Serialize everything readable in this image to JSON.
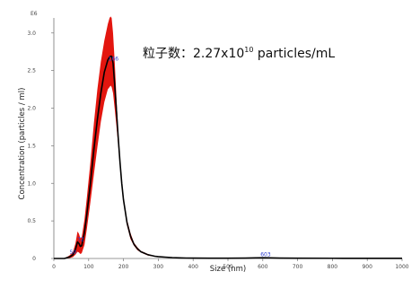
{
  "chart_data": {
    "type": "line",
    "xlabel": "Size (nm)",
    "ylabel": "Concentration (particles / ml)",
    "y_scale_label": "E6",
    "xlim": [
      0,
      1000
    ],
    "ylim": [
      0,
      3.2
    ],
    "x_ticks": [
      "0",
      "100",
      "200",
      "300",
      "400",
      "500",
      "600",
      "700",
      "800",
      "900",
      "1000"
    ],
    "y_ticks": [
      "0",
      "0.5",
      "1.0",
      "1.5",
      "2.0",
      "2.5",
      "3.0"
    ],
    "grid": false,
    "legend": "none",
    "annotation": {
      "prefix": "粒子数：2.27x10",
      "exponent": "10",
      "suffix": " particles/mL"
    },
    "peak_labels": [
      {
        "text": "50",
        "x": 50,
        "y": 0.05
      },
      {
        "text": "72",
        "x": 72,
        "y": 0.22
      },
      {
        "text": "166",
        "x": 166,
        "y": 2.62
      },
      {
        "text": "603",
        "x": 603,
        "y": 0.02
      }
    ],
    "series": [
      {
        "role": "mean",
        "color": "#000000",
        "x": [
          0,
          30,
          45,
          55,
          62,
          68,
          72,
          76,
          80,
          88,
          95,
          105,
          115,
          125,
          135,
          145,
          155,
          160,
          163,
          166,
          170,
          175,
          180,
          185,
          190,
          195,
          200,
          210,
          220,
          230,
          240,
          250,
          260,
          270,
          280,
          290,
          300,
          320,
          340,
          360,
          380,
          400,
          450,
          500,
          550,
          580,
          603,
          620,
          650,
          700,
          800,
          900,
          1000
        ],
        "y": [
          0,
          0,
          0.02,
          0.05,
          0.12,
          0.22,
          0.2,
          0.16,
          0.17,
          0.35,
          0.6,
          1.0,
          1.45,
          1.85,
          2.2,
          2.48,
          2.64,
          2.68,
          2.69,
          2.69,
          2.6,
          2.3,
          1.95,
          1.6,
          1.28,
          1.0,
          0.78,
          0.48,
          0.3,
          0.19,
          0.13,
          0.09,
          0.07,
          0.05,
          0.04,
          0.03,
          0.025,
          0.018,
          0.012,
          0.008,
          0.006,
          0.005,
          0.004,
          0.004,
          0.005,
          0.008,
          0.01,
          0.008,
          0.005,
          0.004,
          0.003,
          0.002,
          0.002
        ]
      },
      {
        "role": "error_band",
        "color": "#e3160f",
        "x": [
          0,
          30,
          45,
          55,
          62,
          68,
          72,
          76,
          80,
          88,
          95,
          105,
          115,
          125,
          135,
          145,
          155,
          160,
          163,
          166,
          170,
          175,
          180,
          185,
          190,
          195,
          200,
          210,
          220,
          230,
          240,
          250,
          260,
          270,
          280,
          290,
          300,
          320,
          340,
          360,
          380,
          400,
          450,
          500,
          550,
          580,
          603,
          620,
          650,
          700,
          800,
          900,
          1000
        ],
        "upper": [
          0,
          0,
          0.04,
          0.09,
          0.2,
          0.36,
          0.33,
          0.27,
          0.28,
          0.52,
          0.82,
          1.28,
          1.8,
          2.25,
          2.62,
          2.9,
          3.12,
          3.2,
          3.22,
          3.2,
          3.0,
          2.6,
          2.12,
          1.68,
          1.32,
          1.03,
          0.82,
          0.52,
          0.34,
          0.21,
          0.15,
          0.1,
          0.08,
          0.06,
          0.045,
          0.035,
          0.03,
          0.022,
          0.015,
          0.011,
          0.009,
          0.007,
          0.006,
          0.006,
          0.007,
          0.01,
          0.013,
          0.011,
          0.008,
          0.006,
          0.005,
          0.004,
          0.003
        ],
        "lower": [
          0,
          0,
          0.005,
          0.02,
          0.05,
          0.09,
          0.08,
          0.06,
          0.07,
          0.18,
          0.4,
          0.75,
          1.12,
          1.48,
          1.82,
          2.08,
          2.25,
          2.28,
          2.3,
          2.28,
          2.2,
          1.98,
          1.75,
          1.5,
          1.22,
          0.96,
          0.74,
          0.44,
          0.26,
          0.17,
          0.11,
          0.08,
          0.06,
          0.04,
          0.032,
          0.025,
          0.02,
          0.014,
          0.009,
          0.006,
          0.004,
          0.003,
          0.002,
          0.002,
          0.003,
          0.006,
          0.007,
          0.005,
          0.003,
          0.002,
          0.001,
          0.001,
          0.001
        ]
      }
    ]
  }
}
